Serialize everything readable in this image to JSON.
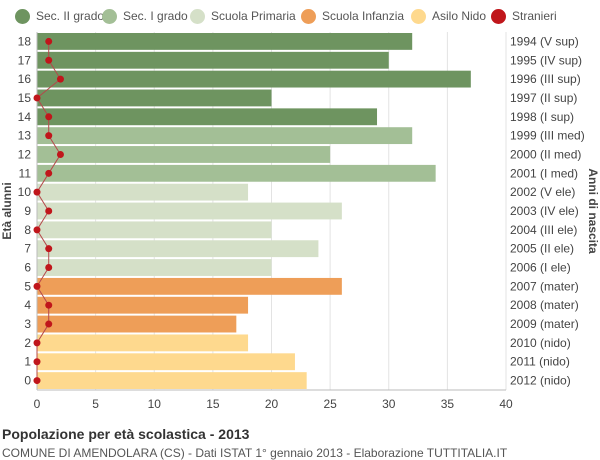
{
  "chart_data": {
    "type": "bar",
    "orientation": "horizontal",
    "title": "Popolazione per età scolastica - 2013",
    "subtitle": "COMUNE DI AMENDOLARA (CS) - Dati ISTAT 1° gennaio 2013 - Elaborazione TUTTITALIA.IT",
    "ylabel": "Età alunni",
    "ylabel_right": "Anni di nascita",
    "xlim": [
      0,
      40
    ],
    "xticks": [
      0,
      5,
      10,
      15,
      20,
      25,
      30,
      35,
      40
    ],
    "grid": true,
    "legend_position": "top",
    "legend": [
      {
        "name": "Sec. II grado",
        "color": "#6e9460"
      },
      {
        "name": "Sec. I grado",
        "color": "#a3bf96"
      },
      {
        "name": "Scuola Primaria",
        "color": "#d5e0c8"
      },
      {
        "name": "Scuola Infanzia",
        "color": "#ee9e58"
      },
      {
        "name": "Asilo Nido",
        "color": "#fed98e"
      },
      {
        "name": "Stranieri",
        "color": "#c0161b"
      }
    ],
    "rows": [
      {
        "age": "18",
        "birth": "1994 (V sup)",
        "value": 32,
        "stranieri": 1,
        "group": 0
      },
      {
        "age": "17",
        "birth": "1995 (IV sup)",
        "value": 30,
        "stranieri": 1,
        "group": 0
      },
      {
        "age": "16",
        "birth": "1996 (III sup)",
        "value": 37,
        "stranieri": 2,
        "group": 0
      },
      {
        "age": "15",
        "birth": "1997 (II sup)",
        "value": 20,
        "stranieri": 0,
        "group": 0
      },
      {
        "age": "14",
        "birth": "1998 (I sup)",
        "value": 29,
        "stranieri": 1,
        "group": 0
      },
      {
        "age": "13",
        "birth": "1999 (III med)",
        "value": 32,
        "stranieri": 1,
        "group": 1
      },
      {
        "age": "12",
        "birth": "2000 (II med)",
        "value": 25,
        "stranieri": 2,
        "group": 1
      },
      {
        "age": "11",
        "birth": "2001 (I med)",
        "value": 34,
        "stranieri": 1,
        "group": 1
      },
      {
        "age": "10",
        "birth": "2002 (V ele)",
        "value": 18,
        "stranieri": 0,
        "group": 2
      },
      {
        "age": "9",
        "birth": "2003 (IV ele)",
        "value": 26,
        "stranieri": 1,
        "group": 2
      },
      {
        "age": "8",
        "birth": "2004 (III ele)",
        "value": 20,
        "stranieri": 0,
        "group": 2
      },
      {
        "age": "7",
        "birth": "2005 (II ele)",
        "value": 24,
        "stranieri": 1,
        "group": 2
      },
      {
        "age": "6",
        "birth": "2006 (I ele)",
        "value": 20,
        "stranieri": 1,
        "group": 2
      },
      {
        "age": "5",
        "birth": "2007 (mater)",
        "value": 26,
        "stranieri": 0,
        "group": 3
      },
      {
        "age": "4",
        "birth": "2008 (mater)",
        "value": 18,
        "stranieri": 1,
        "group": 3
      },
      {
        "age": "3",
        "birth": "2009 (mater)",
        "value": 17,
        "stranieri": 1,
        "group": 3
      },
      {
        "age": "2",
        "birth": "2010 (nido)",
        "value": 18,
        "stranieri": 0,
        "group": 4
      },
      {
        "age": "1",
        "birth": "2011 (nido)",
        "value": 22,
        "stranieri": 0,
        "group": 4
      },
      {
        "age": "0",
        "birth": "2012 (nido)",
        "value": 23,
        "stranieri": 0,
        "group": 4
      }
    ]
  }
}
